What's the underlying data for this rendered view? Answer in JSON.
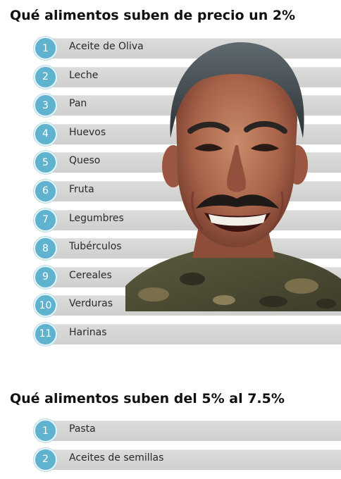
{
  "section1": {
    "title": "Qué alimentos suben de precio un 2%",
    "items": [
      {
        "n": "1",
        "label": "Aceite de Oliva"
      },
      {
        "n": "2",
        "label": "Leche"
      },
      {
        "n": "3",
        "label": "Pan"
      },
      {
        "n": "4",
        "label": "Huevos"
      },
      {
        "n": "5",
        "label": "Queso"
      },
      {
        "n": "6",
        "label": "Fruta"
      },
      {
        "n": "7",
        "label": "Legumbres"
      },
      {
        "n": "8",
        "label": "Tubérculos"
      },
      {
        "n": "9",
        "label": "Cereales"
      },
      {
        "n": "10",
        "label": "Verduras"
      },
      {
        "n": "11",
        "label": "Harinas"
      }
    ]
  },
  "section2": {
    "title": "Qué alimentos suben del 5% al 7.5%",
    "items": [
      {
        "n": "1",
        "label": "Pasta"
      },
      {
        "n": "2",
        "label": "Aceites de semillas"
      }
    ]
  },
  "colors": {
    "badge": "#5fb3cf",
    "bar": "#d5d5d3"
  },
  "photo": {
    "subject": "smiling-man-in-camouflage-uniform"
  }
}
